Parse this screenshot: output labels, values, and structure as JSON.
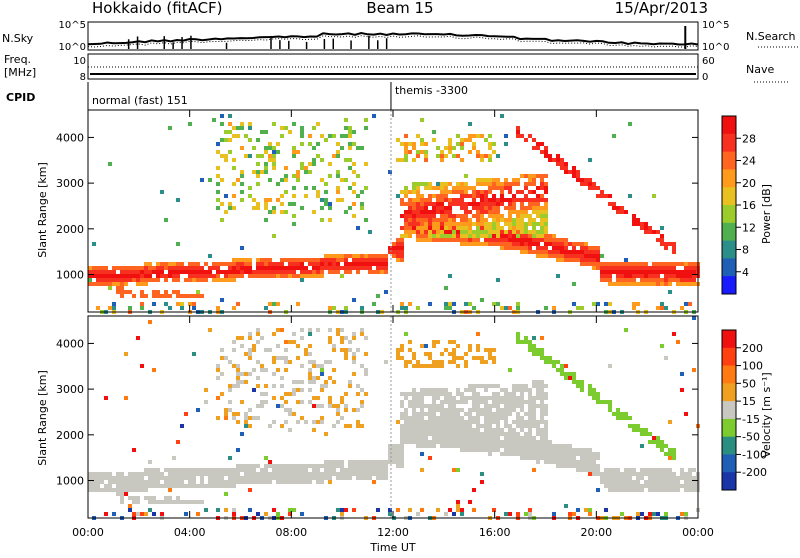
{
  "header": {
    "station": "Hokkaido (fitACF)",
    "beam": "Beam 15",
    "date": "15/Apr/2013"
  },
  "top_strip": {
    "nsky_label": "N.Sky",
    "nsky_ticks": [
      "10^5",
      "10^0"
    ],
    "nsearch_label": "N.Search",
    "nsearch_ticks": [
      "10^5",
      "10^0"
    ],
    "freq_label_1": "Freq.",
    "freq_label_2": "[MHz]",
    "freq_ticks": [
      "10",
      "8"
    ],
    "nave_label": "Nave",
    "nave_ticks": [
      "60",
      "0"
    ],
    "cpid_label": "CPID",
    "cpid_segments": [
      {
        "label": "normal (fast) 151",
        "start_hour": 0
      },
      {
        "label": "themis -3300",
        "start_hour": 11.92
      }
    ]
  },
  "chart_data": [
    {
      "type": "heatmap",
      "name": "power",
      "ylabel": "Slant Range [km]",
      "yticks": [
        "1000",
        "2000",
        "3000",
        "4000"
      ],
      "ylim": [
        180,
        4600
      ],
      "xlim_hours": [
        0,
        24
      ],
      "colorbar": {
        "label": "Power [dB]",
        "ticks": [
          "4",
          "8",
          "12",
          "16",
          "20",
          "24",
          "28"
        ],
        "range": [
          0,
          32
        ],
        "colors": [
          "#1a1aff",
          "#1f5fb5",
          "#2a8f88",
          "#50b050",
          "#9ccc2c",
          "#e8c020",
          "#ff9a1c",
          "#ff6420",
          "#f83020",
          "#f01010"
        ]
      }
    },
    {
      "type": "heatmap",
      "name": "velocity",
      "ylabel": "Slant Range [km]",
      "yticks": [
        "1000",
        "2000",
        "3000",
        "4000"
      ],
      "ylim": [
        180,
        4600
      ],
      "xlim_hours": [
        0,
        24
      ],
      "colorbar": {
        "label": "Velocity [m s⁻¹]",
        "ticks": [
          "200",
          "100",
          "50",
          "15",
          "-15",
          "-50",
          "-100",
          "-200"
        ],
        "colors": [
          "#1a35a8",
          "#1f5fb5",
          "#2a8f80",
          "#7ccc30",
          "#c8c8c0",
          "#f0a020",
          "#ff7a10",
          "#ff4010",
          "#f01010"
        ]
      }
    }
  ],
  "xaxis": {
    "label": "Time UT",
    "ticks": [
      "00:00",
      "04:00",
      "08:00",
      "12:00",
      "16:00",
      "20:00",
      "00:00"
    ]
  }
}
